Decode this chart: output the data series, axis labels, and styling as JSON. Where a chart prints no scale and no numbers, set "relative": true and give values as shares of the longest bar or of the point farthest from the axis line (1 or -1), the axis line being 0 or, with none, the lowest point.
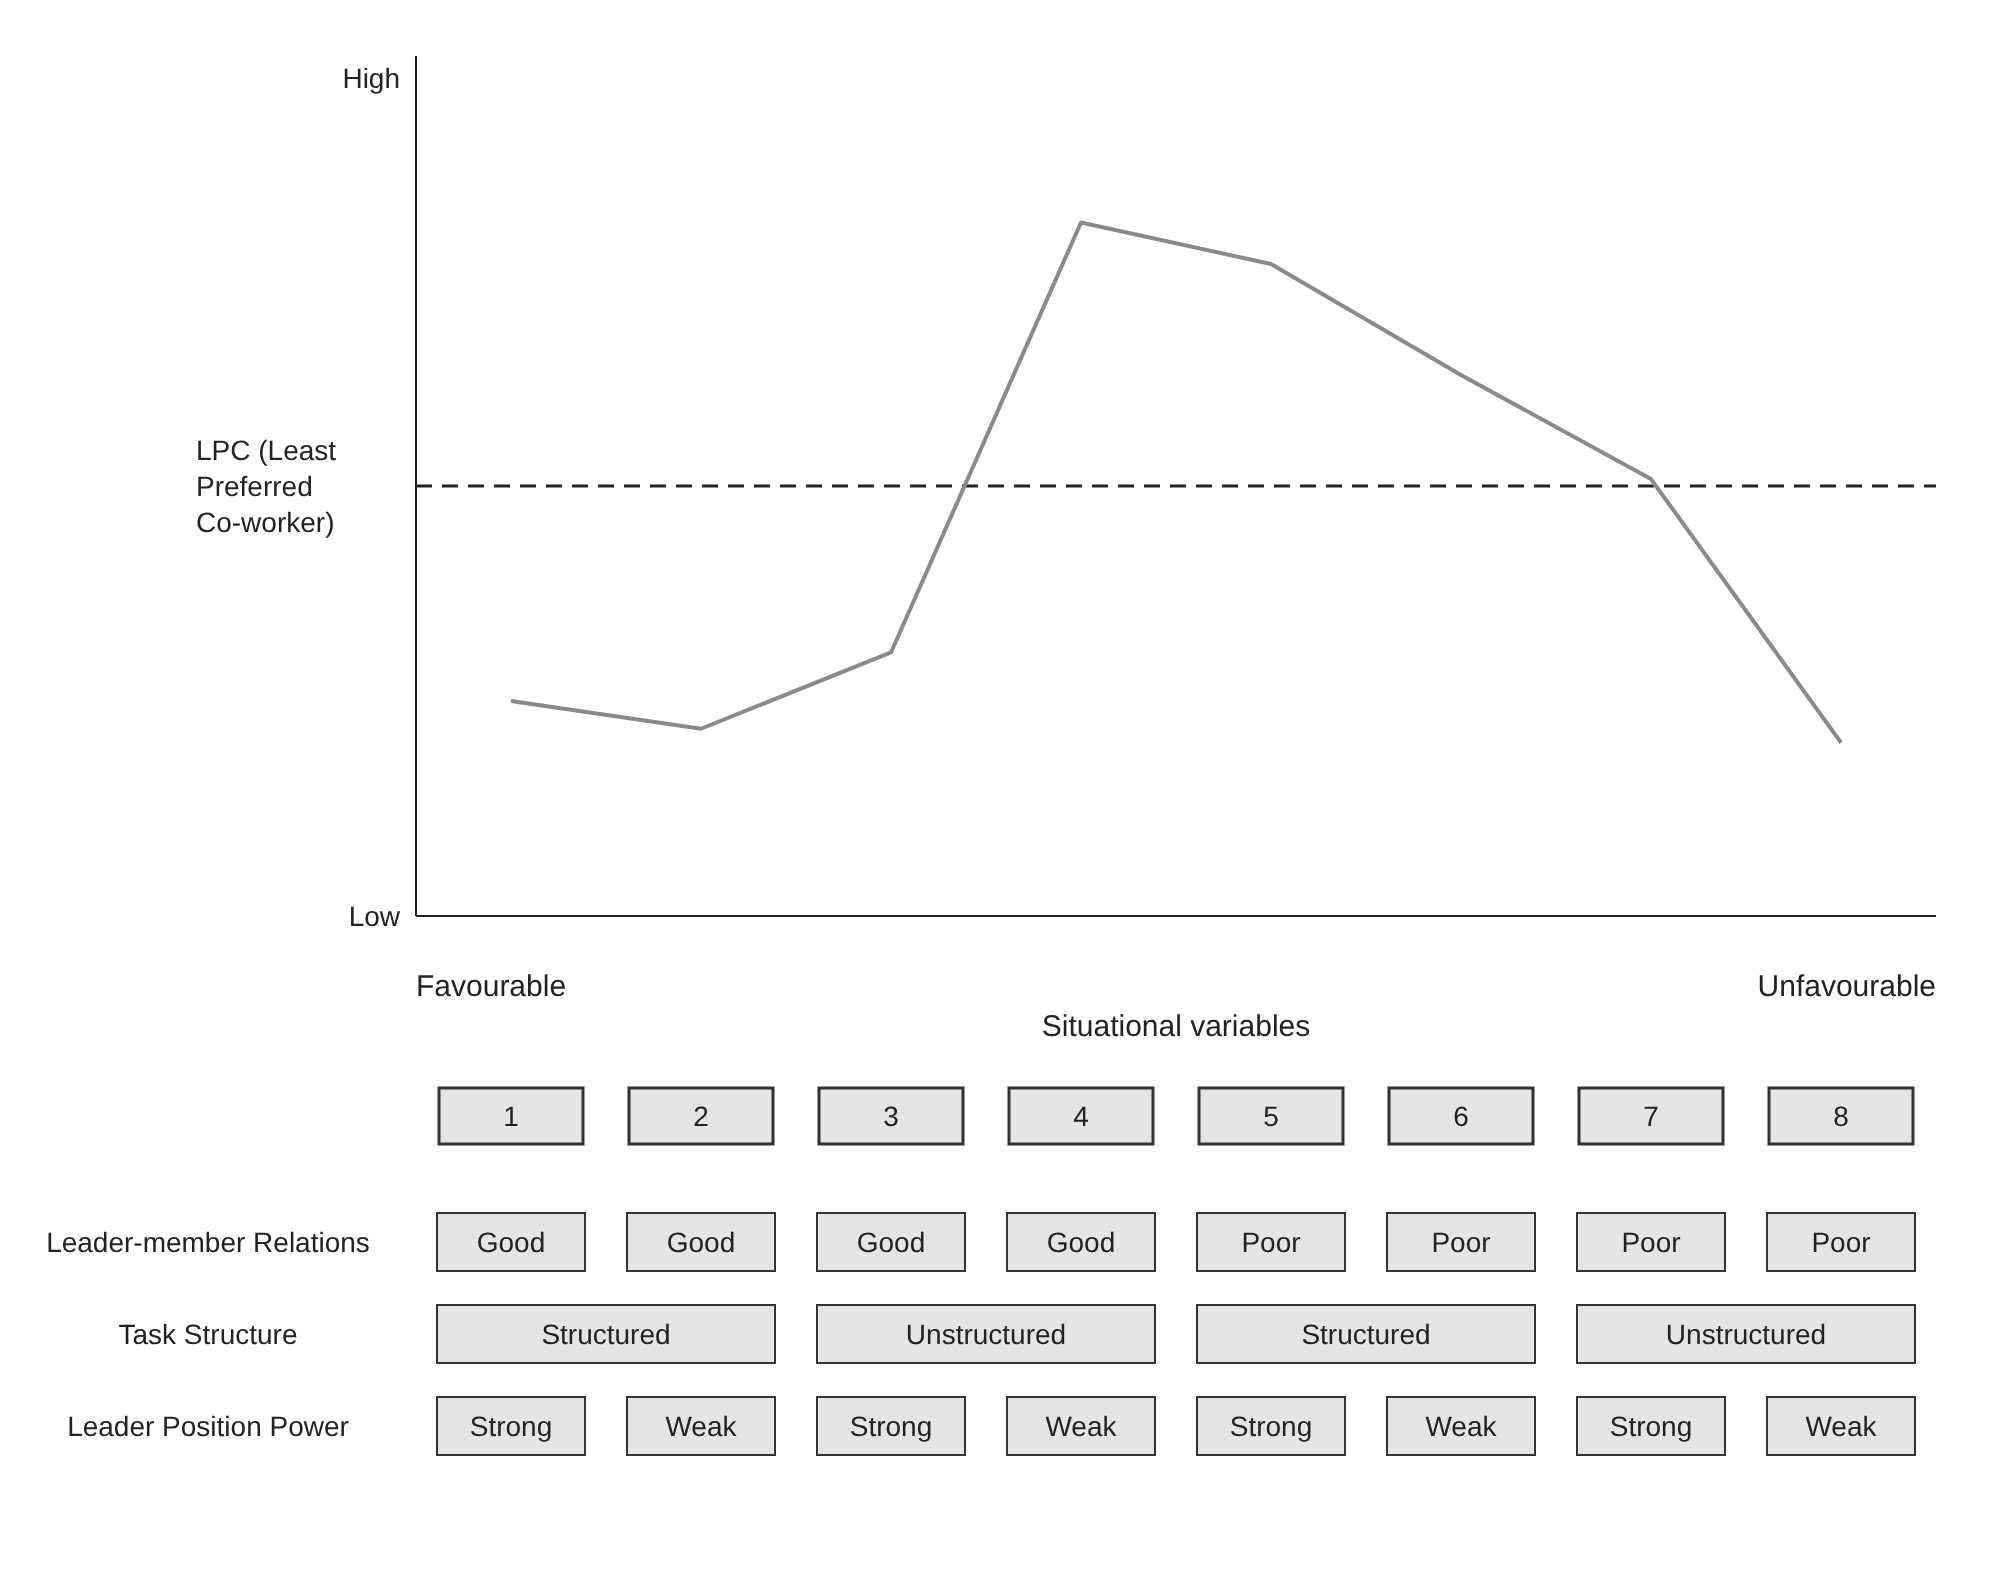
{
  "chart_data": {
    "type": "line",
    "xlabel": "Situational variables",
    "relative": true,
    "categories": [
      "1",
      "2",
      "3",
      "4",
      "5",
      "6",
      "7",
      "8"
    ],
    "series": [
      {
        "color": "#8a8a8a",
        "values": [
          0.31,
          0.27,
          0.38,
          1,
          0.94,
          0.78,
          0.63,
          0.25
        ]
      }
    ],
    "ref_lines": [
      {
        "axis": "y",
        "value": 0.62,
        "label": "LPC (Least Preferred Co-worker)",
        "color": "#222222",
        "line_style": "dashed"
      }
    ],
    "grid": false,
    "legend": false,
    "marker": "none",
    "line_style": "solid",
    "annotations": [
      "Favourable",
      "Unfavourable",
      "High",
      "Low",
      "Leader-member Relations",
      "Good",
      "Good",
      "Good",
      "Good",
      "Poor",
      "Poor",
      "Poor",
      "Poor",
      "Task Structure",
      "Structured",
      "Unstructured",
      "Structured",
      "Unstructured",
      "Leader Position Power",
      "Strong",
      "Weak",
      "Strong",
      "Weak",
      "Strong",
      "Weak",
      "Strong",
      "Weak"
    ]
  }
}
